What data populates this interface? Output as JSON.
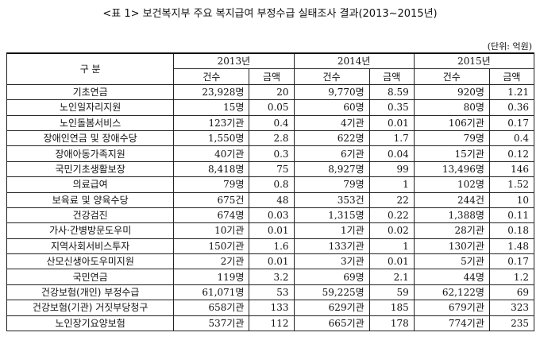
{
  "title": "<표 1> 보건복지부 주요 복지급여 부정수급 실태조사 결과(2013~2015년)",
  "unit": "(단위: 억원)",
  "header": {
    "category": "구 분",
    "years": [
      "2013년",
      "2014년",
      "2015년"
    ],
    "count": "건수",
    "amount": "금액"
  },
  "rows": [
    {
      "name": "기초연금",
      "y2013_count": "23,928명",
      "y2013_amount": "20",
      "y2014_count": "9,770명",
      "y2014_amount": "8.59",
      "y2015_count": "920명",
      "y2015_amount": "1.21"
    },
    {
      "name": "노인일자리지원",
      "y2013_count": "15명",
      "y2013_amount": "0.05",
      "y2014_count": "60명",
      "y2014_amount": "0.35",
      "y2015_count": "80명",
      "y2015_amount": "0.36"
    },
    {
      "name": "노인돌봄서비스",
      "y2013_count": "123기관",
      "y2013_amount": "0.4",
      "y2014_count": "4기관",
      "y2014_amount": "0.01",
      "y2015_count": "106기관",
      "y2015_amount": "0.17"
    },
    {
      "name": "장애인연금 및 장애수당",
      "y2013_count": "1,550명",
      "y2013_amount": "2.8",
      "y2014_count": "622명",
      "y2014_amount": "1.7",
      "y2015_count": "79명",
      "y2015_amount": "0.4"
    },
    {
      "name": "장애아동가족지원",
      "y2013_count": "40기관",
      "y2013_amount": "0.3",
      "y2014_count": "6기관",
      "y2014_amount": "0.04",
      "y2015_count": "15기관",
      "y2015_amount": "0.12"
    },
    {
      "name": "국민기초생활보장",
      "y2013_count": "8,418명",
      "y2013_amount": "75",
      "y2014_count": "8,927명",
      "y2014_amount": "99",
      "y2015_count": "13,496명",
      "y2015_amount": "146"
    },
    {
      "name": "의료급여",
      "y2013_count": "79명",
      "y2013_amount": "0.8",
      "y2014_count": "79명",
      "y2014_amount": "1",
      "y2015_count": "102명",
      "y2015_amount": "1.52"
    },
    {
      "name": "보육료 및 양육수당",
      "y2013_count": "675건",
      "y2013_amount": "48",
      "y2014_count": "353건",
      "y2014_amount": "22",
      "y2015_count": "244건",
      "y2015_amount": "10"
    },
    {
      "name": "건강검진",
      "y2013_count": "674명",
      "y2013_amount": "0.03",
      "y2014_count": "1,315명",
      "y2014_amount": "0.22",
      "y2015_count": "1,388명",
      "y2015_amount": "0.11"
    },
    {
      "name": "가사·간병방문도우미",
      "y2013_count": "10기관",
      "y2013_amount": "0.01",
      "y2014_count": "1기관",
      "y2014_amount": "0.02",
      "y2015_count": "28기관",
      "y2015_amount": "0.18"
    },
    {
      "name": "지역사회서비스투자",
      "y2013_count": "150기관",
      "y2013_amount": "1.6",
      "y2014_count": "133기관",
      "y2014_amount": "1",
      "y2015_count": "130기관",
      "y2015_amount": "1.48"
    },
    {
      "name": "산모신생아도우미지원",
      "y2013_count": "2기관",
      "y2013_amount": "0.01",
      "y2014_count": "3기관",
      "y2014_amount": "0.01",
      "y2015_count": "5기관",
      "y2015_amount": "0.17"
    },
    {
      "name": "국민연금",
      "y2013_count": "119명",
      "y2013_amount": "3.2",
      "y2014_count": "69명",
      "y2014_amount": "2.1",
      "y2015_count": "44명",
      "y2015_amount": "1.2"
    },
    {
      "name": "건강보험(개인) 부정수급",
      "y2013_count": "61,071명",
      "y2013_amount": "53",
      "y2014_count": "59,225명",
      "y2014_amount": "59",
      "y2015_count": "62,122명",
      "y2015_amount": "69"
    },
    {
      "name": "건강보험(기관) 거짓부당청구",
      "y2013_count": "658기관",
      "y2013_amount": "133",
      "y2014_count": "629기관",
      "y2014_amount": "185",
      "y2015_count": "679기관",
      "y2015_amount": "323"
    },
    {
      "name": "노인장기요양보험",
      "y2013_count": "537기관",
      "y2013_amount": "112",
      "y2014_count": "665기관",
      "y2014_amount": "178",
      "y2015_count": "774기관",
      "y2015_amount": "235"
    }
  ]
}
